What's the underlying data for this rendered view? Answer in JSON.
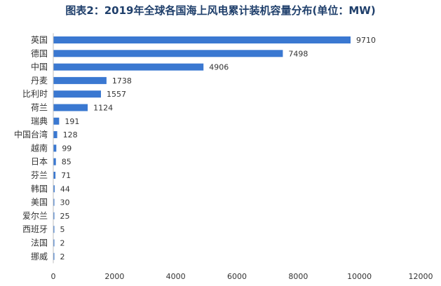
{
  "chart_data": {
    "type": "bar",
    "orientation": "horizontal",
    "title": "图表2：2019年全球各国海上风电累计装机容量分布(单位：MW)",
    "categories": [
      "英国",
      "德国",
      "中国",
      "丹麦",
      "比利时",
      "荷兰",
      "瑞典",
      "中国台湾",
      "越南",
      "日本",
      "芬兰",
      "韩国",
      "美国",
      "爱尔兰",
      "西班牙",
      "法国",
      "挪威"
    ],
    "values": [
      9710,
      7498,
      4906,
      1738,
      1557,
      1124,
      191,
      128,
      99,
      85,
      71,
      44,
      30,
      25,
      5,
      2,
      2
    ],
    "xlim": [
      0,
      12000
    ],
    "xticks": [
      "0",
      "2000",
      "4000",
      "6000",
      "8000",
      "10000",
      "12000"
    ],
    "bar_color": "#3a78d1",
    "grid": false,
    "xlabel": "",
    "ylabel": ""
  }
}
